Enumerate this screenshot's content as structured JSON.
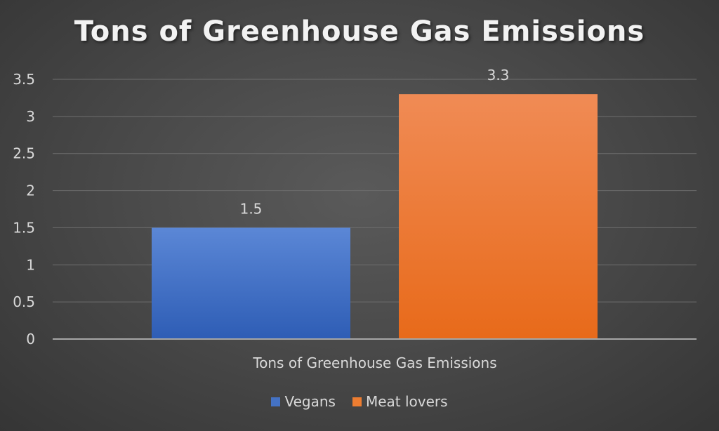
{
  "chart_data": {
    "type": "bar",
    "title": "Tons of Greenhouse Gas Emissions",
    "categories": [
      "Tons of Greenhouse Gas Emissions"
    ],
    "series": [
      {
        "name": "Vegans",
        "values": [
          1.5
        ],
        "color": "#4472c4",
        "label": "1.5"
      },
      {
        "name": "Meat lovers",
        "values": [
          3.3
        ],
        "color": "#ed7d31",
        "label": "3.3"
      }
    ],
    "ylim": [
      0,
      3.5
    ],
    "yticks": [
      "0",
      "0.5",
      "1",
      "1.5",
      "2",
      "2.5",
      "3",
      "3.5"
    ],
    "grid": true,
    "legend_position": "bottom"
  }
}
